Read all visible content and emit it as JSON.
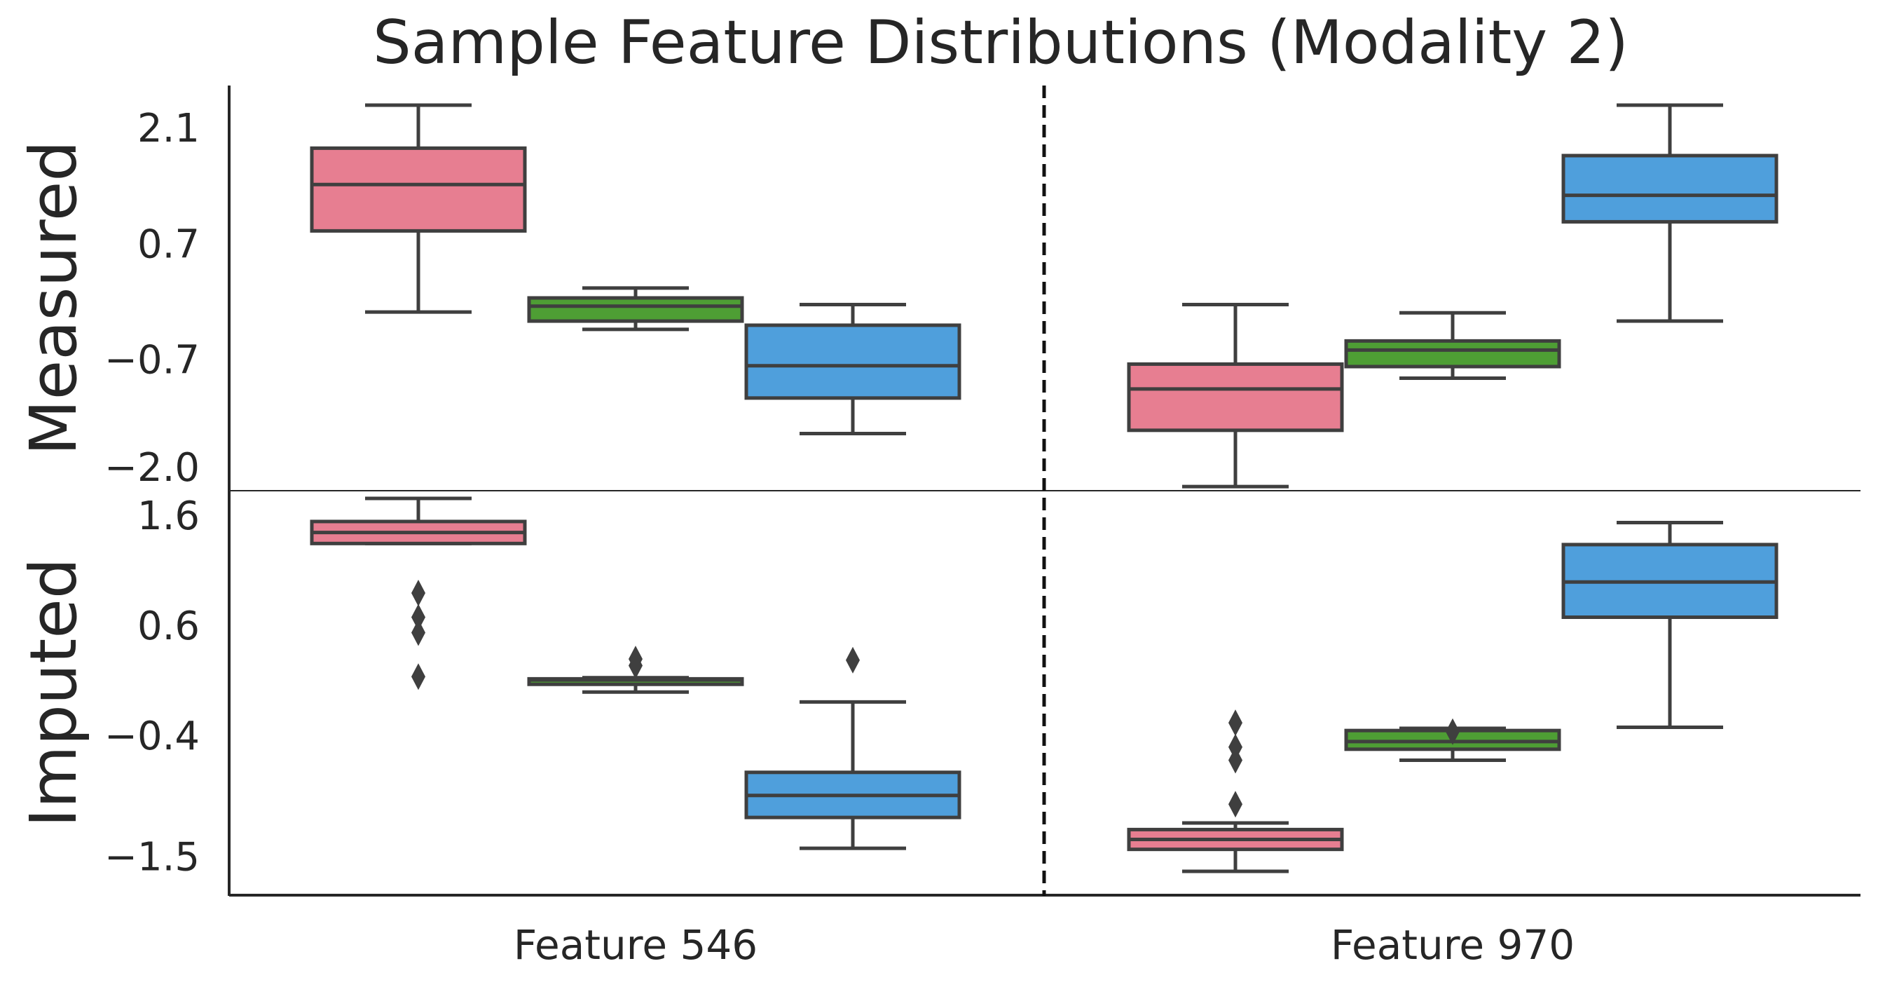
{
  "chart_data": {
    "type": "box",
    "title": "Sample Feature Distributions (Modality 2)",
    "categories": [
      "Feature 546",
      "Feature 970"
    ],
    "series_colors": [
      "#e77e91",
      "#4e9e34",
      "#4f9fdc"
    ],
    "box_edge_color": "#3f3f3f",
    "panels": [
      {
        "label": "Measured",
        "yticks": [
          2.1,
          0.7,
          -0.7,
          -2.0
        ],
        "ytick_labels": [
          "2.1",
          "0.7",
          "−0.7",
          "−2.0"
        ],
        "ylim": [
          -2.28,
          2.38
        ],
        "boxes": [
          {
            "category": "Feature 546",
            "series": 0,
            "whislo": -0.12,
            "q1": 0.86,
            "med": 1.42,
            "q3": 1.86,
            "whishi": 2.38,
            "fliers": []
          },
          {
            "category": "Feature 546",
            "series": 1,
            "whislo": -0.33,
            "q1": -0.23,
            "med": -0.05,
            "q3": 0.05,
            "whishi": 0.17,
            "fliers": []
          },
          {
            "category": "Feature 546",
            "series": 2,
            "whislo": -1.59,
            "q1": -1.16,
            "med": -0.77,
            "q3": -0.28,
            "whishi": -0.03,
            "fliers": []
          },
          {
            "category": "Feature 970",
            "series": 0,
            "whislo": -2.23,
            "q1": -1.55,
            "med": -1.05,
            "q3": -0.75,
            "whishi": -0.03,
            "fliers": []
          },
          {
            "category": "Feature 970",
            "series": 1,
            "whislo": -0.92,
            "q1": -0.78,
            "med": -0.58,
            "q3": -0.47,
            "whishi": -0.13,
            "fliers": []
          },
          {
            "category": "Feature 970",
            "series": 2,
            "whislo": -0.23,
            "q1": 0.97,
            "med": 1.29,
            "q3": 1.77,
            "whishi": 2.38,
            "fliers": []
          }
        ]
      },
      {
        "label": "Imputed",
        "yticks": [
          1.6,
          0.6,
          -0.4,
          -1.5
        ],
        "ytick_labels": [
          "1.6",
          "0.6",
          "−0.4",
          "−1.5"
        ],
        "ylim": [
          -1.84,
          1.83
        ],
        "boxes": [
          {
            "category": "Feature 546",
            "series": 0,
            "whislo": 1.35,
            "q1": 1.35,
            "med": 1.45,
            "q3": 1.55,
            "whishi": 1.76,
            "fliers": [
              0.9,
              0.68,
              0.54,
              0.14
            ]
          },
          {
            "category": "Feature 546",
            "series": 1,
            "whislo": 0.0,
            "q1": 0.07,
            "med": 0.11,
            "q3": 0.12,
            "whishi": 0.13,
            "fliers": [
              0.3,
              0.24
            ]
          },
          {
            "category": "Feature 546",
            "series": 2,
            "whislo": -1.42,
            "q1": -1.14,
            "med": -0.94,
            "q3": -0.73,
            "whishi": -0.09,
            "fliers": [
              0.29
            ]
          },
          {
            "category": "Feature 970",
            "series": 0,
            "whislo": -1.63,
            "q1": -1.43,
            "med": -1.34,
            "q3": -1.25,
            "whishi": -1.19,
            "fliers": [
              -0.28,
              -0.62,
              -0.5,
              -1.02
            ]
          },
          {
            "category": "Feature 970",
            "series": 1,
            "whislo": -0.62,
            "q1": -0.52,
            "med": -0.45,
            "q3": -0.35,
            "whishi": -0.33,
            "fliers": [
              -0.36
            ]
          },
          {
            "category": "Feature 970",
            "series": 2,
            "whislo": -0.32,
            "q1": 0.68,
            "med": 1.0,
            "q3": 1.34,
            "whishi": 1.54,
            "fliers": []
          }
        ]
      }
    ]
  }
}
